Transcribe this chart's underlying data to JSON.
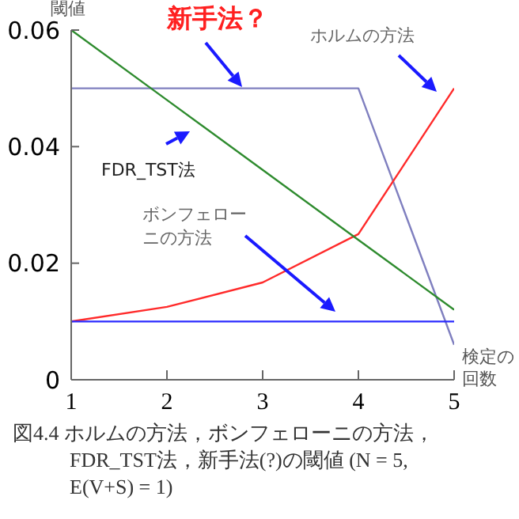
{
  "chart_data": {
    "type": "line",
    "ylabel": "閾値",
    "xlabel": "検定の回数",
    "x": [
      1,
      2,
      3,
      4,
      5
    ],
    "xlim": [
      1,
      5
    ],
    "xticks": [
      1,
      2,
      3,
      4,
      5
    ],
    "ylim": [
      0,
      0.06
    ],
    "yticks": [
      0,
      0.02,
      0.04,
      0.06
    ],
    "grid": false,
    "legend": false,
    "marker": "none",
    "line_style": "solid",
    "series": [
      {
        "color": "#7f7fbf",
        "values": [
          0.05,
          0.05,
          0.05,
          0.05,
          0.006
        ]
      },
      {
        "color": "#ff2a2a",
        "values": [
          0.01,
          0.0125,
          0.0167,
          0.025,
          0.05
        ]
      },
      {
        "color": "#2e8b2e",
        "values": [
          0.06,
          0.048,
          0.036,
          0.024,
          0.012
        ]
      },
      {
        "color": "#2a2aff",
        "values": [
          0.01,
          0.01,
          0.01,
          0.01,
          0.01
        ]
      }
    ],
    "annotations": [
      "新手法？",
      "ホルムの方法",
      "FDR_TST法",
      "ボンフェローニの方法",
      "図4.4 ホルムの方法，ボンフェローニの方法，FDR_TST法，新手法(?)の閾値 (N = 5, E(V+S) = 1)"
    ]
  }
}
